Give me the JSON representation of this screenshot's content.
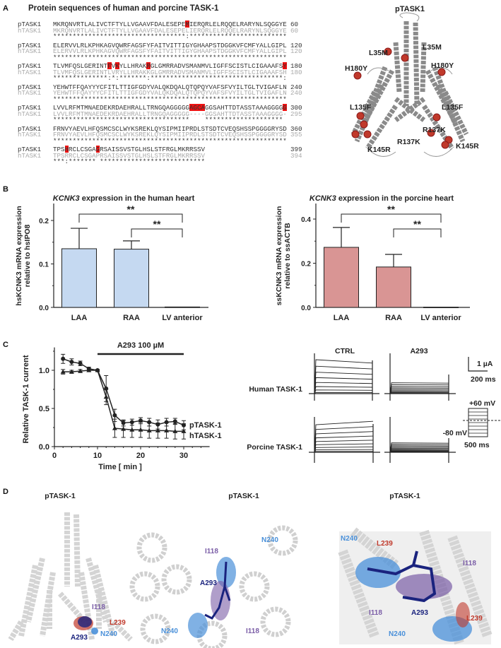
{
  "panel_letters": [
    "A",
    "B",
    "C",
    "D"
  ],
  "panel_a": {
    "title": "Protein sequences of human and porcine TASK-1",
    "highlight_color": "#ee1111",
    "blocks": [
      {
        "p_name": "pTASK1",
        "p_seq": "MKRQNVRTLALIVCTFTYLLVGAAVFDALESEPEMIERQRLELRQQELRARYNLSQGGYE",
        "p_end": "60",
        "h_name": "hTASK1",
        "h_seq": "MKRQNVRTLALIVCTFTYLLVGAAVFDALESEPELIERQRLELRQQELRARYNLSQGGYE",
        "h_end": "60",
        "conservation": "**********************************:*************************",
        "highlights": [
          [
            34,
            1
          ]
        ]
      },
      {
        "p_name": "pTASK1",
        "p_seq": "ELERVVLRLKPHKAGVQWRFAGSFYFAITVITTIGYGHAAPSTDGGKVFCMFYALLGIPL",
        "p_end": "120",
        "h_name": "hTASK1",
        "h_seq": "ELERVVLRLKPHKAGVQWRFAGSFYFAITVITTIGYGHAAPSTDGGKVFCMFYALLGIPL",
        "h_end": "120",
        "conservation": "************************************************************",
        "highlights": []
      },
      {
        "p_name": "pTASK1",
        "p_seq": "TLVMFQSLGERINTFVKYLLHRAKRGLGMRRADVSMANMVLIGFFSCISTLCIGAAAFSY",
        "p_end": "180",
        "h_name": "hTASK1",
        "h_seq": "TLVMFQSLGERINTLVRYLLHRAKKGLGMRRADVSMANMVLIGFFSCISTLCIGAAAFSH",
        "h_end": "180",
        "conservation": "**************:*:*******:**********************************:",
        "highlights": [
          [
            14,
            1
          ],
          [
            16,
            1
          ],
          [
            24,
            1
          ],
          [
            59,
            1
          ]
        ]
      },
      {
        "p_name": "pTASK1",
        "p_seq": "YEHWTFFQAYYYCFITLTTIGFGDYVALQKDQALQTQPQYVAFSFVYILTGLTVIGAFLN",
        "p_end": "240",
        "h_name": "hTASK1",
        "h_seq": "YEHWTFFQAYYYCFITLTTIGFGDYVALQKDQALQTQPQYVAFSFVYILTGLTVIGAFLN",
        "h_end": "240",
        "conservation": "************************************************************",
        "highlights": []
      },
      {
        "p_name": "pTASK1",
        "p_seq": "LVVLRFMTMNAEDEKRDAEHRALLTRNGQAGGGGGAGCAGGSAHTTDTASSTAAAGGGGG",
        "p_end": "300",
        "h_name": "hTASK1",
        "h_seq": "LVVLRFMTMNAEDEKRDAEHRALLTRNGQAGGGGG----GGSAHTTDTASSTAAAGGGG-",
        "h_end": "295",
        "conservation": "***********************************    ******************** ",
        "highlights": [
          [
            35,
            4
          ],
          [
            59,
            1
          ]
        ]
      },
      {
        "p_name": "pTASK1",
        "p_seq": "FRNVYAEVLHFQSMCSCLWYKSREKLQYSIPMIIPRDLSTSDTCVEQSHSSPGGGGRYSD",
        "p_end": "360",
        "h_name": "hTASK1",
        "h_seq": "FRNVYAEVLHFQSMCSCLWYKSREKLQYSIPMIIPRDLSTSDTCVEQSHSSPGGGGRYSD",
        "h_end": "355",
        "conservation": "************************************************************",
        "highlights": []
      },
      {
        "p_name": "pTASK1",
        "p_seq": "TPSHRCLCSGAGRSAISSVSTGLHSLSTFRGLMKRRSSV",
        "p_end": "399",
        "h_name": "hTASK1",
        "h_seq": "TPSRRCLCSGAPRSAISSVSTGLHSLSTFRGLMKRRSSV",
        "h_end": "394",
        "conservation": "***:******* ***************************",
        "highlights": [
          [
            3,
            1
          ],
          [
            11,
            1
          ]
        ]
      }
    ],
    "structure": {
      "title": "pTASK1",
      "mutation_color": "#c0392b",
      "labels": [
        "L35M",
        "L35M",
        "H180Y",
        "H180Y",
        "L135F",
        "L135F",
        "R137K",
        "R137K",
        "K145R",
        "K145R"
      ]
    }
  },
  "chart_data": [
    {
      "type": "bar",
      "title_italic": "KCNK3",
      "title": " expression in the human heart",
      "ylabel_line1": "hsKCNK3 mRNA expression",
      "ylabel_line2": "relative to hsIPO8",
      "categories": [
        "LAA",
        "RAA",
        "LV anterior"
      ],
      "values": [
        0.135,
        0.134,
        0.001
      ],
      "errors": [
        0.047,
        0.019,
        0.0
      ],
      "ylim": [
        0,
        0.24
      ],
      "yticks": [
        "0.0",
        "0.1",
        "0.2"
      ],
      "bar_color": "#c5d9f1",
      "significance": [
        {
          "from": "LAA",
          "to": "LV anterior",
          "label": "**"
        },
        {
          "from": "RAA",
          "to": "LV anterior",
          "label": "**"
        }
      ]
    },
    {
      "type": "bar",
      "title_italic": "KCNK3",
      "title": "  expression in the porcine heart",
      "ylabel_line1": "ssKCNK3 mRNA expression",
      "ylabel_line2": "relative to ssACTB",
      "categories": [
        "LAA",
        "RAA",
        "LV anterior"
      ],
      "values": [
        0.272,
        0.183,
        0.001
      ],
      "errors": [
        0.09,
        0.057,
        0.0
      ],
      "ylim": [
        0,
        0.47
      ],
      "yticks": [
        "0.0",
        "0.2",
        "0.4"
      ],
      "bar_color": "#d99594",
      "significance": [
        {
          "from": "LAA",
          "to": "LV anterior",
          "label": "**"
        },
        {
          "from": "RAA",
          "to": "LV anterior",
          "label": "**"
        }
      ]
    },
    {
      "type": "line",
      "xlabel": "Time [ min ]",
      "ylabel": "Relative TASK-1 current",
      "xlim": [
        0,
        36
      ],
      "ylim": [
        0,
        1.3
      ],
      "xticks": [
        "0",
        "10",
        "20",
        "30"
      ],
      "yticks": [
        "0.0",
        "0.5",
        "1.0"
      ],
      "annotation": {
        "label": "A293 100 µM",
        "from": 10,
        "to": 30
      },
      "x": [
        2,
        4,
        6,
        8,
        10,
        12,
        14,
        16,
        18,
        20,
        22,
        24,
        26,
        28,
        30
      ],
      "series": [
        {
          "name": "pTASK-1",
          "marker": "circle",
          "values": [
            1.15,
            1.11,
            1.09,
            1.02,
            1.0,
            0.76,
            0.41,
            0.31,
            0.32,
            0.34,
            0.32,
            0.29,
            0.32,
            0.33,
            0.28
          ],
          "errors": [
            0.06,
            0.04,
            0.03,
            0.02,
            0.01,
            0.17,
            0.08,
            0.04,
            0.04,
            0.04,
            0.05,
            0.06,
            0.05,
            0.04,
            0.06
          ]
        },
        {
          "name": "hTASK-1",
          "marker": "triangle",
          "values": [
            0.98,
            0.98,
            0.99,
            1.0,
            1.0,
            0.65,
            0.24,
            0.23,
            0.22,
            0.22,
            0.21,
            0.21,
            0.21,
            0.2,
            0.2
          ],
          "errors": [
            0.03,
            0.02,
            0.02,
            0.02,
            0.01,
            0.1,
            0.12,
            0.11,
            0.1,
            0.1,
            0.1,
            0.1,
            0.1,
            0.1,
            0.1
          ]
        }
      ]
    }
  ],
  "panel_c_traces": {
    "column_labels": [
      "CTRL",
      "A293"
    ],
    "row_labels": [
      "Human TASK-1",
      "Porcine TASK-1"
    ],
    "scale_current": "1 µA",
    "scale_time": "200 ms",
    "protocol_top": "+60 mV",
    "protocol_bottom": "-80 mV",
    "protocol_duration": "500 ms"
  },
  "panel_d": {
    "titles": [
      "pTASK-1",
      "pTASK-1",
      "pTASK-1"
    ],
    "residue_colors": {
      "I118": "#7b5ea7",
      "L239": "#c0392b",
      "N240": "#4a90d9",
      "A293": "#1a237e"
    },
    "labels_left": [
      "I118",
      "L239",
      "A293",
      "N240"
    ],
    "labels_middle": [
      "I118",
      "N240",
      "A293",
      "N240",
      "I118"
    ],
    "labels_right": [
      "N240",
      "L239",
      "I118",
      "I118",
      "A293",
      "L239",
      "N240"
    ]
  }
}
